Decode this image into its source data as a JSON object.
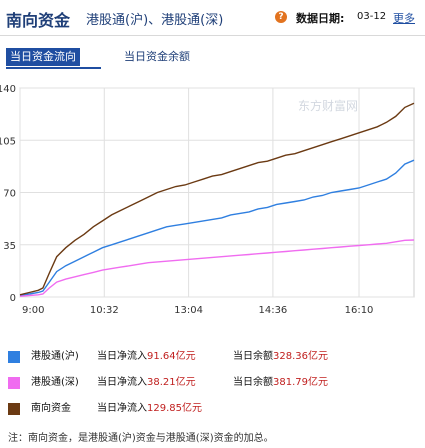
{
  "header": {
    "title": "南向资金",
    "subtitle": "港股通(沪)、港股通(深)",
    "help_icon": "question-icon",
    "date_label": "数据日期:",
    "date_value": "03-12",
    "more_label": "更多"
  },
  "tabs": [
    {
      "label": "当日资金流向",
      "active": true
    },
    {
      "label": "当日资金余额",
      "active": false
    }
  ],
  "chart_data": {
    "type": "line",
    "title": "",
    "xlabel": "",
    "ylabel": "",
    "ylim": [
      0,
      140
    ],
    "yticks": [
      0,
      35,
      70,
      105,
      140
    ],
    "xlim": [
      0,
      430
    ],
    "xticks": [
      {
        "label": "9:00",
        "t": 0
      },
      {
        "label": "10:32",
        "t": 92
      },
      {
        "label": "13:04",
        "t": 184
      },
      {
        "label": "14:36",
        "t": 276
      },
      {
        "label": "16:10",
        "t": 370
      }
    ],
    "x_unit": "minutes since 9:00 (trading time)",
    "grid": true,
    "watermark": "东方财富网",
    "series": [
      {
        "name": "港股通(沪)",
        "color": "#2f7fe0",
        "x": [
          0,
          10,
          20,
          25,
          32,
          40,
          50,
          60,
          70,
          80,
          90,
          100,
          110,
          120,
          130,
          140,
          150,
          160,
          170,
          180,
          190,
          200,
          210,
          220,
          230,
          240,
          250,
          260,
          270,
          280,
          290,
          300,
          310,
          320,
          330,
          340,
          350,
          360,
          370,
          380,
          390,
          400,
          410,
          420,
          430
        ],
        "y": [
          1,
          2,
          3,
          4,
          10,
          17,
          21,
          24,
          27,
          30,
          33,
          35,
          37,
          39,
          41,
          43,
          45,
          47,
          48,
          49,
          50,
          51,
          52,
          53,
          55,
          56,
          57,
          59,
          60,
          62,
          63,
          64,
          65,
          67,
          68,
          70,
          71,
          72,
          73,
          75,
          77,
          79,
          83,
          89,
          91.64
        ]
      },
      {
        "name": "港股通(深)",
        "color": "#f06cf0",
        "x": [
          0,
          10,
          20,
          25,
          32,
          40,
          50,
          60,
          70,
          80,
          90,
          100,
          110,
          120,
          130,
          140,
          150,
          160,
          170,
          180,
          190,
          200,
          210,
          220,
          230,
          240,
          250,
          260,
          270,
          280,
          290,
          300,
          310,
          320,
          330,
          340,
          350,
          360,
          370,
          380,
          390,
          400,
          410,
          420,
          430
        ],
        "y": [
          0.5,
          1,
          1.5,
          2,
          6,
          10,
          12,
          13.5,
          15,
          16.5,
          18,
          19,
          20,
          21,
          22,
          23,
          23.5,
          24,
          24.5,
          25,
          25.5,
          26,
          26.5,
          27,
          27.5,
          28,
          28.5,
          29,
          29.5,
          30,
          30.5,
          31,
          31.5,
          32,
          32.5,
          33,
          33.5,
          34,
          34.5,
          35,
          35.5,
          36,
          37,
          38,
          38.21
        ]
      },
      {
        "name": "南向资金",
        "color": "#6b3a13",
        "x": [
          0,
          10,
          20,
          25,
          32,
          40,
          50,
          60,
          70,
          80,
          90,
          100,
          110,
          120,
          130,
          140,
          150,
          160,
          170,
          180,
          190,
          200,
          210,
          220,
          230,
          240,
          250,
          260,
          270,
          280,
          290,
          300,
          310,
          320,
          330,
          340,
          350,
          360,
          370,
          380,
          390,
          400,
          410,
          420,
          430
        ],
        "y": [
          1.5,
          3,
          4.5,
          6,
          16,
          27,
          33,
          38,
          42,
          47,
          51,
          55,
          58,
          61,
          64,
          67,
          70,
          72,
          74,
          75,
          77,
          79,
          81,
          82,
          84,
          86,
          88,
          90,
          91,
          93,
          95,
          96,
          98,
          100,
          102,
          104,
          106,
          108,
          110,
          112,
          114,
          117,
          121,
          127,
          129.85
        ]
      }
    ]
  },
  "legend": [
    {
      "name": "港股通(沪)",
      "color": "#2f7fe0",
      "net_label": "当日净流入",
      "net_value": "91.64亿元",
      "bal_label": "当日余额",
      "bal_value": "328.36亿元"
    },
    {
      "name": "港股通(深)",
      "color": "#f06cf0",
      "net_label": "当日净流入",
      "net_value": "38.21亿元",
      "bal_label": "当日余额",
      "bal_value": "381.79亿元"
    },
    {
      "name": "南向资金",
      "color": "#6b3a13",
      "net_label": "当日净流入",
      "net_value": "129.85亿元"
    }
  ],
  "note": "注：南向资金，是港股通(沪)资金与港股通(深)资金的加总。"
}
